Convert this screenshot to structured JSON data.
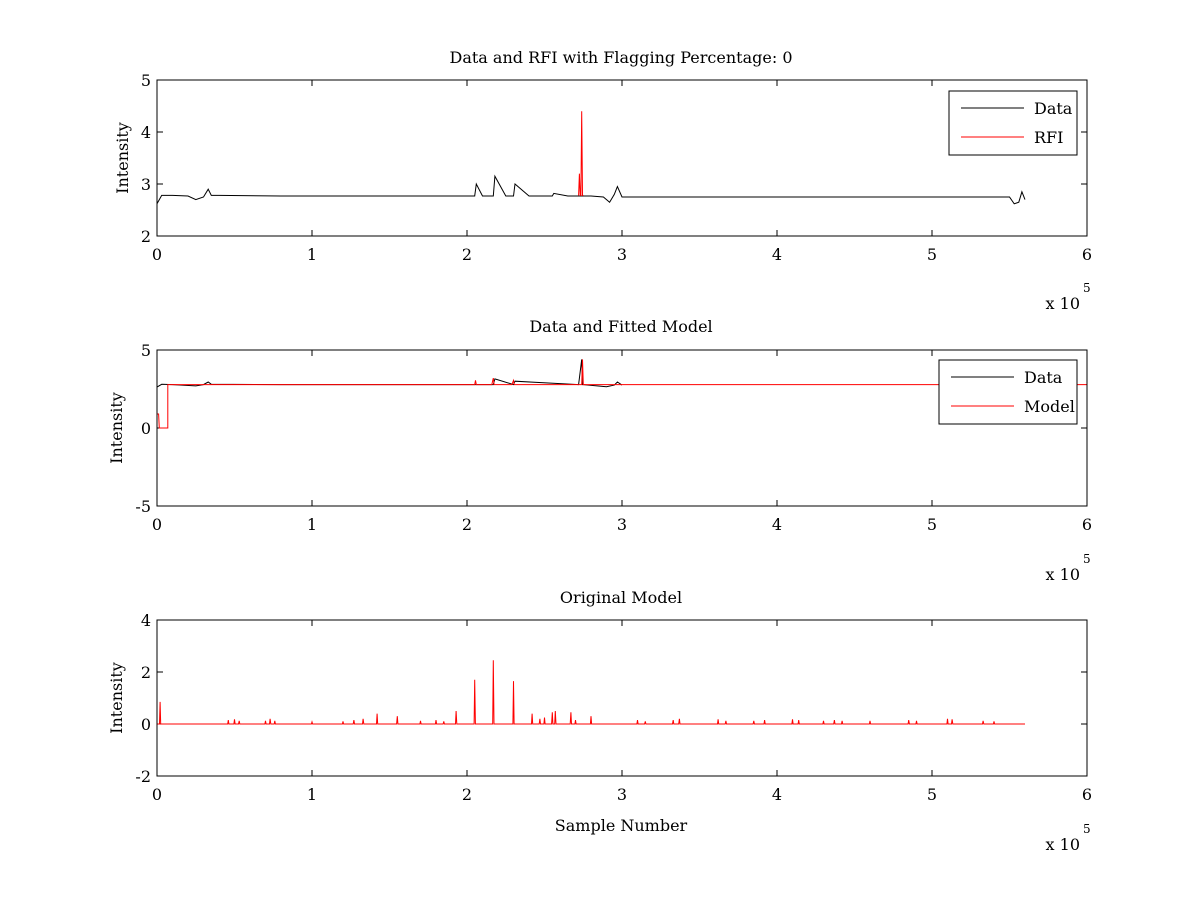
{
  "chart_data": [
    {
      "type": "line",
      "title": "Data and RFI with Flagging Percentage: 0",
      "xlabel": "",
      "ylabel": "Intensity",
      "x_multiplier_label": "x 10",
      "x_multiplier_exp": "5",
      "xlim": [
        0,
        6
      ],
      "ylim": [
        2,
        5
      ],
      "xticks": [
        "0",
        "1",
        "2",
        "3",
        "4",
        "5",
        "6"
      ],
      "yticks": [
        "2",
        "3",
        "4",
        "5"
      ],
      "legend": "top-right",
      "series": [
        {
          "name": "Data",
          "color": "#000000",
          "x": [
            0.0,
            0.03,
            0.05,
            0.1,
            0.2,
            0.25,
            0.3,
            0.33,
            0.35,
            0.4,
            0.8,
            1.2,
            1.6,
            2.0,
            2.05,
            2.06,
            2.1,
            2.17,
            2.18,
            2.25,
            2.3,
            2.31,
            2.4,
            2.55,
            2.56,
            2.65,
            2.72,
            2.8,
            2.88,
            2.92,
            2.95,
            2.97,
            3.0,
            3.5,
            4.0,
            4.5,
            5.0,
            5.5,
            5.53,
            5.56,
            5.58,
            5.6
          ],
          "y": [
            2.62,
            2.78,
            2.78,
            2.78,
            2.77,
            2.7,
            2.75,
            2.9,
            2.78,
            2.78,
            2.77,
            2.77,
            2.77,
            2.77,
            2.77,
            3.0,
            2.77,
            2.77,
            3.15,
            2.77,
            2.77,
            3.0,
            2.77,
            2.77,
            2.82,
            2.77,
            2.77,
            2.77,
            2.75,
            2.65,
            2.8,
            2.95,
            2.75,
            2.75,
            2.75,
            2.75,
            2.75,
            2.75,
            2.62,
            2.65,
            2.85,
            2.7
          ]
        },
        {
          "name": "RFI",
          "color": "#ff0000",
          "x": [
            2.72,
            2.725,
            2.73,
            2.735,
            2.74,
            2.745,
            2.75
          ],
          "y": [
            2.78,
            3.2,
            2.78,
            2.78,
            4.4,
            2.78,
            2.78
          ]
        }
      ]
    },
    {
      "type": "line",
      "title": "Data and Fitted Model",
      "xlabel": "",
      "ylabel": "Intensity",
      "x_multiplier_label": "x 10",
      "x_multiplier_exp": "5",
      "xlim": [
        0,
        6
      ],
      "ylim": [
        -5,
        5
      ],
      "xticks": [
        "0",
        "1",
        "2",
        "3",
        "4",
        "5",
        "6"
      ],
      "yticks": [
        "-5",
        "0",
        "5"
      ],
      "legend": "top-right",
      "series": [
        {
          "name": "Data",
          "color": "#000000",
          "x": [
            0.0,
            0.03,
            0.1,
            0.25,
            0.3,
            0.33,
            0.35,
            0.8,
            1.6,
            2.17,
            2.18,
            2.3,
            2.31,
            2.72,
            2.74,
            2.745,
            2.75,
            2.9,
            2.95,
            2.97,
            3.0
          ],
          "y": [
            2.62,
            2.8,
            2.78,
            2.7,
            2.78,
            2.95,
            2.8,
            2.78,
            2.78,
            2.78,
            3.15,
            2.78,
            3.0,
            2.78,
            4.4,
            2.78,
            2.78,
            2.65,
            2.75,
            2.95,
            2.75
          ]
        },
        {
          "name": "Model",
          "color": "#ff0000",
          "x": [
            0.0,
            0.01,
            0.015,
            0.02,
            0.02,
            0.07,
            0.07,
            2.05,
            2.055,
            2.06,
            2.16,
            2.17,
            2.175,
            2.29,
            2.3,
            2.305,
            2.74,
            2.745,
            2.75,
            6.0
          ],
          "y": [
            0.9,
            0.9,
            0.0,
            0.0,
            0.0,
            0.0,
            2.78,
            2.78,
            3.05,
            2.78,
            2.78,
            3.2,
            2.78,
            2.78,
            3.05,
            2.78,
            2.78,
            4.4,
            2.78,
            2.78
          ]
        }
      ]
    },
    {
      "type": "line",
      "title": "Original Model",
      "xlabel": "Sample Number",
      "ylabel": "Intensity",
      "x_multiplier_label": "x 10",
      "x_multiplier_exp": "5",
      "xlim": [
        0,
        6
      ],
      "ylim": [
        -2,
        4
      ],
      "xticks": [
        "0",
        "1",
        "2",
        "3",
        "4",
        "5",
        "6"
      ],
      "yticks": [
        "-2",
        "0",
        "2",
        "4"
      ],
      "legend": "none",
      "series": [
        {
          "name": "",
          "color": "#ff0000",
          "baseline": 0,
          "x_end": 5.6,
          "spikes": [
            [
              0.02,
              0.85
            ],
            [
              0.46,
              0.15
            ],
            [
              0.5,
              0.18
            ],
            [
              0.53,
              0.12
            ],
            [
              0.7,
              0.12
            ],
            [
              0.73,
              0.2
            ],
            [
              0.76,
              0.12
            ],
            [
              1.0,
              0.08
            ],
            [
              1.2,
              0.1
            ],
            [
              1.27,
              0.15
            ],
            [
              1.33,
              0.2
            ],
            [
              1.42,
              0.4
            ],
            [
              1.55,
              0.3
            ],
            [
              1.7,
              0.12
            ],
            [
              1.8,
              0.15
            ],
            [
              1.85,
              0.1
            ],
            [
              1.93,
              0.5
            ],
            [
              2.05,
              1.7
            ],
            [
              2.17,
              2.45
            ],
            [
              2.3,
              1.65
            ],
            [
              2.42,
              0.4
            ],
            [
              2.47,
              0.2
            ],
            [
              2.5,
              0.25
            ],
            [
              2.55,
              0.45
            ],
            [
              2.57,
              0.5
            ],
            [
              2.67,
              0.45
            ],
            [
              2.7,
              0.15
            ],
            [
              2.8,
              0.3
            ],
            [
              3.1,
              0.15
            ],
            [
              3.15,
              0.1
            ],
            [
              3.33,
              0.15
            ],
            [
              3.37,
              0.2
            ],
            [
              3.62,
              0.18
            ],
            [
              3.67,
              0.12
            ],
            [
              3.85,
              0.12
            ],
            [
              3.92,
              0.15
            ],
            [
              4.1,
              0.18
            ],
            [
              4.14,
              0.15
            ],
            [
              4.3,
              0.12
            ],
            [
              4.37,
              0.15
            ],
            [
              4.42,
              0.12
            ],
            [
              4.6,
              0.12
            ],
            [
              4.85,
              0.15
            ],
            [
              4.9,
              0.12
            ],
            [
              5.1,
              0.2
            ],
            [
              5.13,
              0.18
            ],
            [
              5.33,
              0.12
            ],
            [
              5.4,
              0.1
            ]
          ]
        }
      ]
    }
  ]
}
